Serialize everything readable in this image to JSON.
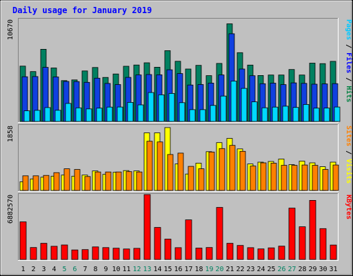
{
  "chart_data": {
    "type": "bar",
    "title": "Daily usage for January 2019",
    "days": [
      "1",
      "2",
      "3",
      "4",
      "5",
      "6",
      "7",
      "8",
      "9",
      "10",
      "11",
      "12",
      "13",
      "14",
      "15",
      "16",
      "17",
      "18",
      "19",
      "20",
      "21",
      "22",
      "23",
      "24",
      "25",
      "26",
      "27",
      "28",
      "29",
      "30",
      "31"
    ],
    "weekend_days": [
      5,
      6,
      12,
      13,
      19,
      20,
      26,
      27
    ],
    "panels": [
      {
        "name": "top",
        "max_label": "10670",
        "ymax": 10670,
        "side_labels": [
          {
            "text": "Pages",
            "color": "#00c8ff"
          },
          {
            "text": " / ",
            "color": "#000000"
          },
          {
            "text": "Files",
            "color": "#0000ff"
          },
          {
            "text": " / ",
            "color": "#000000"
          },
          {
            "text": "Hits",
            "color": "#008040"
          }
        ],
        "series": [
          {
            "key": "hits",
            "color": "#008060",
            "values": [
              5780,
              5210,
              7540,
              5590,
              4270,
              4340,
              5280,
              5640,
              4600,
              4960,
              5770,
              5900,
              6130,
              5670,
              7400,
              6290,
              5480,
              5860,
              4790,
              6060,
              10200,
              7190,
              5890,
              4800,
              4850,
              4850,
              5430,
              4850,
              6090,
              6040,
              6280
            ]
          },
          {
            "key": "files",
            "color": "#1040e0",
            "values": [
              4670,
              4690,
              5650,
              4650,
              4180,
              4170,
              4090,
              4520,
              3970,
              3860,
              4610,
              4860,
              4900,
              4870,
              5400,
              5000,
              3810,
              3860,
              4010,
              4860,
              9160,
              5480,
              4780,
              3940,
              4000,
              3850,
              4030,
              3980,
              3890,
              3920,
              3950
            ]
          },
          {
            "key": "pages",
            "color": "#00d8ff",
            "values": [
              1110,
              1160,
              1450,
              1170,
              1880,
              1420,
              1310,
              1390,
              1500,
              1510,
              1990,
              1730,
              3020,
              2780,
              2930,
              1960,
              1230,
              1230,
              1670,
              2650,
              4220,
              3450,
              2050,
              1430,
              1500,
              1590,
              1460,
              1770,
              1390,
              1400,
              1510
            ]
          }
        ]
      },
      {
        "name": "middle",
        "max_label": "1858",
        "ymax": 1858,
        "side_labels": [
          {
            "text": "Sites",
            "color": "#ff8000"
          },
          {
            "text": " / ",
            "color": "#000000"
          },
          {
            "text": "Visits",
            "color": "#ffff00"
          }
        ],
        "series": [
          {
            "key": "visits",
            "color": "#ffff00",
            "values": [
              250,
              330,
              380,
              410,
              440,
              410,
              440,
              560,
              460,
              520,
              570,
              560,
              1650,
              1650,
              1800,
              760,
              470,
              780,
              1110,
              1370,
              1490,
              1190,
              760,
              810,
              830,
              900,
              740,
              840,
              790,
              680,
              810
            ]
          },
          {
            "key": "sites",
            "color": "#ff8000",
            "values": [
              420,
              420,
              430,
              510,
              620,
              600,
              400,
              530,
              530,
              530,
              540,
              530,
              1410,
              1390,
              1030,
              1070,
              690,
              620,
              1100,
              1200,
              1290,
              1120,
              700,
              790,
              780,
              720,
              720,
              730,
              720,
              600,
              730
            ]
          }
        ]
      },
      {
        "name": "bottom",
        "max_label": "6882570",
        "ymax": 6882570,
        "side_labels": [
          {
            "text": "KBytes",
            "color": "#ff0000"
          }
        ],
        "series": [
          {
            "key": "kbytes",
            "color": "#ff0000",
            "values": [
              3990000,
              1270000,
              1710000,
              1400000,
              1540000,
              1010000,
              1050000,
              1330000,
              1260000,
              1190000,
              1110000,
              1180000,
              6882570,
              3400000,
              2160000,
              1250000,
              4200000,
              1210000,
              1270000,
              5520000,
              1710000,
              1490000,
              1250000,
              1120000,
              1230000,
              1410000,
              5450000,
              3470000,
              6270000,
              3270000,
              1530000
            ]
          }
        ]
      }
    ]
  }
}
